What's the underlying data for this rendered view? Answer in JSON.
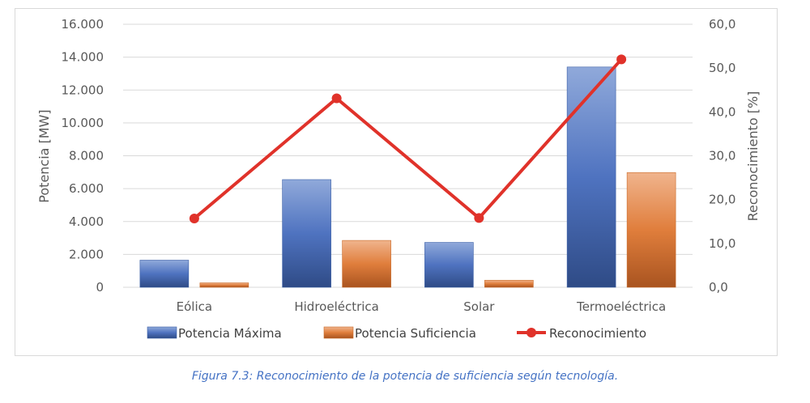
{
  "caption": "Figura 7.3: Reconocimiento de la potencia de suficiencia según tecnología.",
  "chart_data": {
    "type": "bar",
    "categories": [
      "Eólica",
      "Hidroeléctrica",
      "Solar",
      "Termoeléctrica"
    ],
    "series": [
      {
        "name": "Potencia Máxima",
        "type": "bar",
        "axis": "left",
        "values": [
          1650,
          6550,
          2730,
          13400
        ],
        "color": "#4472c4"
      },
      {
        "name": "Potencia Suficiencia",
        "type": "bar",
        "axis": "left",
        "values": [
          270,
          2850,
          430,
          6980
        ],
        "color": "#ed7d31"
      },
      {
        "name": "Reconocimiento",
        "type": "line",
        "axis": "right",
        "values": [
          15.7,
          43.1,
          15.8,
          52.0
        ],
        "color": "#e0322a"
      }
    ],
    "ylabel": "Potencia [MW]",
    "y2label": "Reconocimiento [%]",
    "ylim": [
      0,
      16000
    ],
    "y2lim": [
      0,
      60
    ],
    "yticks": [
      "0",
      "2.000",
      "4.000",
      "6.000",
      "8.000",
      "10.000",
      "12.000",
      "14.000",
      "16.000"
    ],
    "y2ticks": [
      "0,0",
      "10,0",
      "20,0",
      "30,0",
      "40,0",
      "50,0",
      "60,0"
    ],
    "grid": true,
    "legend": "bottom"
  }
}
